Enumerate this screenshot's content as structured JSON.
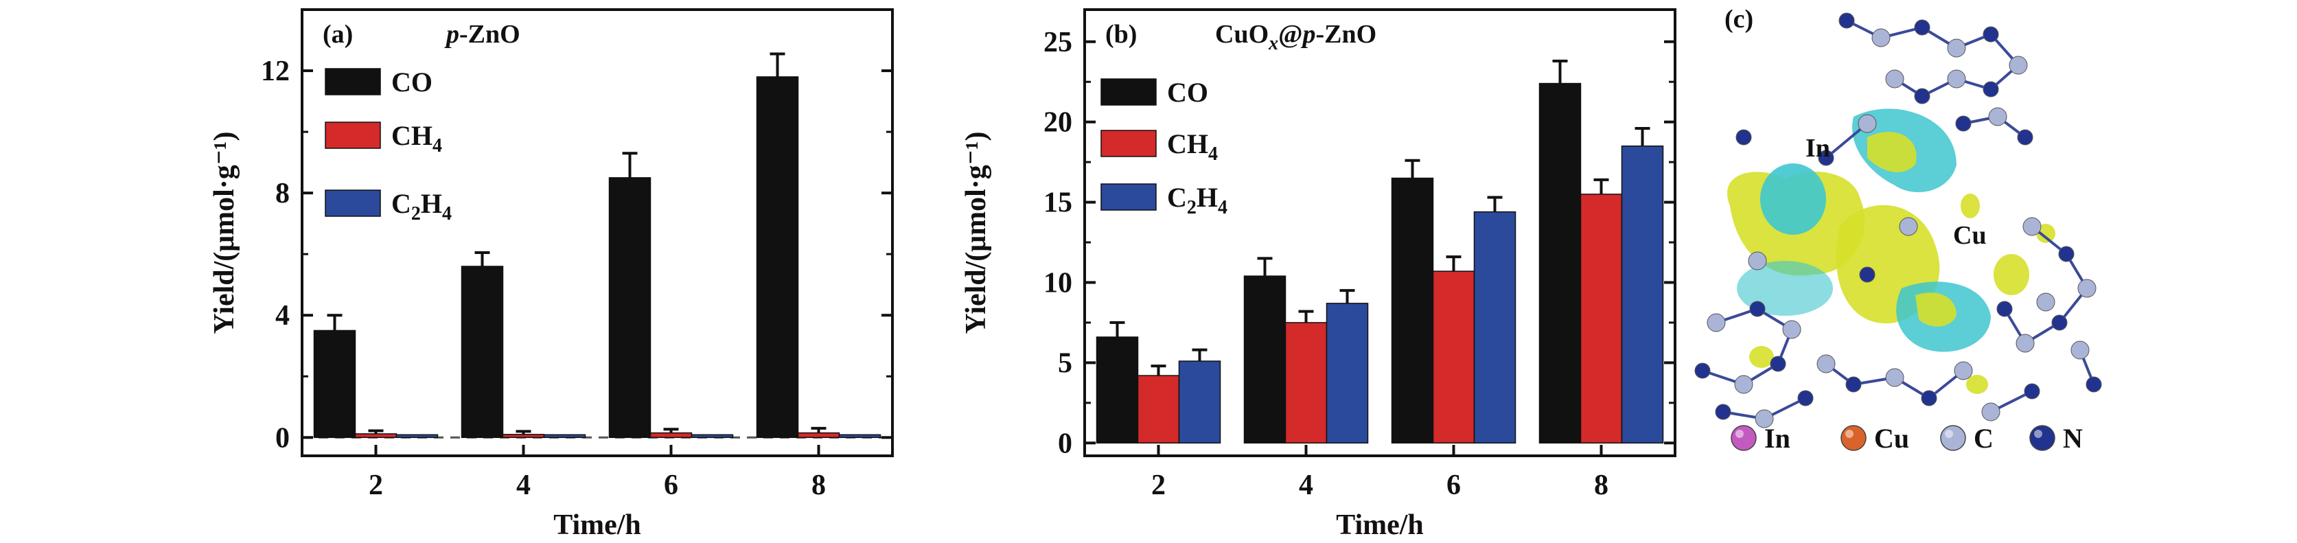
{
  "chart_data": [
    {
      "type": "bar",
      "panel_label": "(a)",
      "title_italic": "p",
      "title_rest": "-ZnO",
      "xlabel": "Time/h",
      "ylabel": "Yield/(μmol·g⁻¹)",
      "categories": [
        "2",
        "4",
        "6",
        "8"
      ],
      "ylim": [
        -0.6,
        14
      ],
      "yticks": [
        0,
        4,
        8,
        12
      ],
      "dashed_zero_line": true,
      "legend_position": "upper-left",
      "series": [
        {
          "name": "CO",
          "name_main": "CO",
          "name_parts": [
            [
              "CO",
              false
            ]
          ],
          "color": "#111111",
          "values": [
            3.5,
            5.6,
            8.5,
            11.8
          ],
          "errors": [
            0.5,
            0.45,
            0.8,
            0.75
          ]
        },
        {
          "name": "CH4",
          "name_parts": [
            [
              "CH",
              false
            ],
            [
              "4",
              true
            ]
          ],
          "color": "#d42a2a",
          "values": [
            0.12,
            0.1,
            0.15,
            0.15
          ],
          "errors": [
            0.1,
            0.1,
            0.12,
            0.15
          ]
        },
        {
          "name": "C2H4",
          "name_parts": [
            [
              "C",
              false
            ],
            [
              "2",
              true
            ],
            [
              "H",
              false
            ],
            [
              "4",
              true
            ]
          ],
          "color": "#2b4a9c",
          "values": [
            0.02,
            0.02,
            0.02,
            0.02
          ],
          "errors": [
            0,
            0,
            0,
            0
          ]
        }
      ]
    },
    {
      "type": "bar",
      "panel_label": "(b)",
      "title_parts": [
        [
          "CuO",
          false,
          false
        ],
        [
          "x",
          true,
          true
        ],
        [
          "@",
          false,
          false
        ],
        [
          "p",
          false,
          true
        ],
        [
          "-ZnO",
          false,
          false
        ]
      ],
      "xlabel": "Time/h",
      "ylabel": "Yield/(μmol·g⁻¹)",
      "categories": [
        "2",
        "4",
        "6",
        "8"
      ],
      "ylim": [
        -0.8,
        27
      ],
      "yticks": [
        0,
        5,
        10,
        15,
        20,
        25
      ],
      "dashed_zero_line": false,
      "legend_position": "upper-left",
      "series": [
        {
          "name": "CO",
          "name_parts": [
            [
              "CO",
              false
            ]
          ],
          "color": "#111111",
          "values": [
            6.6,
            10.4,
            16.5,
            22.4
          ],
          "errors": [
            0.9,
            1.1,
            1.1,
            1.4
          ]
        },
        {
          "name": "CH4",
          "name_parts": [
            [
              "CH",
              false
            ],
            [
              "4",
              true
            ]
          ],
          "color": "#d42a2a",
          "values": [
            4.2,
            7.5,
            10.7,
            15.5
          ],
          "errors": [
            0.6,
            0.7,
            0.9,
            0.9
          ]
        },
        {
          "name": "C2H4",
          "name_parts": [
            [
              "C",
              false
            ],
            [
              "2",
              true
            ],
            [
              "H",
              false
            ],
            [
              "4",
              true
            ]
          ],
          "color": "#2b4a9c",
          "values": [
            5.1,
            8.7,
            14.4,
            18.5
          ],
          "errors": [
            0.7,
            0.8,
            0.9,
            1.1
          ]
        }
      ]
    }
  ],
  "panel_c": {
    "panel_label": "(c)",
    "site_labels": [
      "In",
      "Cu"
    ],
    "legend": [
      {
        "name": "In",
        "color": "#c25ac0"
      },
      {
        "name": "Cu",
        "color": "#d9632a"
      },
      {
        "name": "C",
        "color": "#aab4d6"
      },
      {
        "name": "N",
        "color": "#22338f"
      }
    ],
    "isosurface_colors": {
      "accumulation": "#d6e02a",
      "depletion": "#3ec6cf"
    }
  }
}
